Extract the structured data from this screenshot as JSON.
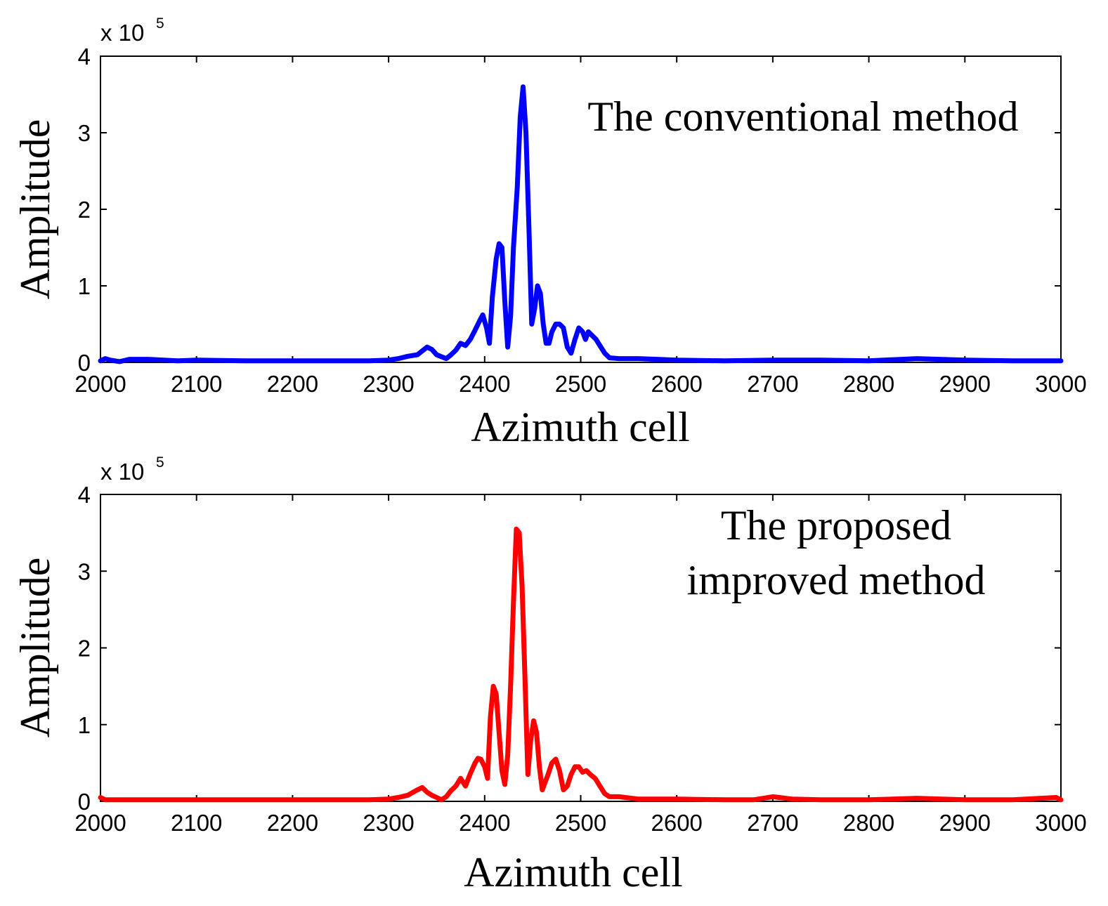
{
  "chart_data": [
    {
      "type": "line",
      "xlabel": "Azimuth cell",
      "ylabel": "Amplitude",
      "y_exponent": {
        "prefix": "x 10",
        "power": "5"
      },
      "xlim": [
        2000,
        3000
      ],
      "ylim": [
        0,
        4
      ],
      "xticks": [
        2000,
        2100,
        2200,
        2300,
        2400,
        2500,
        2600,
        2700,
        2800,
        2900,
        3000
      ],
      "yticks": [
        0,
        1,
        2,
        3,
        4
      ],
      "annotation": [
        "The conventional method"
      ],
      "legend_position": "top-right",
      "grid": false,
      "series": [
        {
          "name": "The conventional method",
          "color": "#0000ff",
          "x": [
            2000,
            2005,
            2010,
            2020,
            2030,
            2050,
            2080,
            2100,
            2150,
            2200,
            2250,
            2280,
            2300,
            2310,
            2320,
            2330,
            2340,
            2345,
            2350,
            2360,
            2365,
            2370,
            2375,
            2380,
            2385,
            2390,
            2395,
            2398,
            2402,
            2405,
            2408,
            2412,
            2415,
            2418,
            2421,
            2424,
            2427,
            2430,
            2434,
            2437,
            2440,
            2443,
            2446,
            2449,
            2452,
            2455,
            2458,
            2461,
            2464,
            2467,
            2470,
            2474,
            2478,
            2482,
            2486,
            2490,
            2494,
            2498,
            2502,
            2505,
            2508,
            2512,
            2516,
            2520,
            2525,
            2530,
            2540,
            2560,
            2600,
            2650,
            2700,
            2750,
            2800,
            2850,
            2900,
            2950,
            3000
          ],
          "values": [
            0.02,
            0.05,
            0.03,
            0.01,
            0.04,
            0.04,
            0.02,
            0.03,
            0.02,
            0.02,
            0.02,
            0.02,
            0.03,
            0.05,
            0.08,
            0.1,
            0.2,
            0.17,
            0.1,
            0.05,
            0.1,
            0.16,
            0.25,
            0.22,
            0.3,
            0.42,
            0.55,
            0.62,
            0.45,
            0.25,
            0.85,
            1.35,
            1.55,
            1.5,
            0.8,
            0.2,
            0.6,
            1.5,
            2.3,
            3.2,
            3.6,
            3.0,
            1.8,
            0.5,
            0.7,
            1.0,
            0.9,
            0.5,
            0.25,
            0.25,
            0.4,
            0.5,
            0.5,
            0.45,
            0.2,
            0.12,
            0.3,
            0.45,
            0.4,
            0.3,
            0.4,
            0.35,
            0.3,
            0.22,
            0.12,
            0.06,
            0.05,
            0.05,
            0.03,
            0.02,
            0.03,
            0.03,
            0.02,
            0.05,
            0.03,
            0.02,
            0.02
          ]
        }
      ]
    },
    {
      "type": "line",
      "xlabel": "Azimuth cell",
      "ylabel": "Amplitude",
      "y_exponent": {
        "prefix": "x 10",
        "power": "5"
      },
      "xlim": [
        2000,
        3000
      ],
      "ylim": [
        0,
        4
      ],
      "xticks": [
        2000,
        2100,
        2200,
        2300,
        2400,
        2500,
        2600,
        2700,
        2800,
        2900,
        3000
      ],
      "yticks": [
        0,
        1,
        2,
        3,
        4
      ],
      "annotation": [
        "The proposed",
        "improved method"
      ],
      "legend_position": "top-right",
      "grid": false,
      "series": [
        {
          "name": "The proposed improved method",
          "color": "#ff0000",
          "x": [
            2000,
            2005,
            2010,
            2030,
            2050,
            2080,
            2100,
            2150,
            2200,
            2250,
            2280,
            2300,
            2310,
            2320,
            2330,
            2335,
            2340,
            2345,
            2350,
            2355,
            2360,
            2365,
            2370,
            2375,
            2380,
            2385,
            2390,
            2393,
            2396,
            2400,
            2403,
            2406,
            2409,
            2412,
            2415,
            2418,
            2421,
            2424,
            2427,
            2430,
            2433,
            2436,
            2439,
            2442,
            2445,
            2448,
            2451,
            2454,
            2457,
            2460,
            2463,
            2466,
            2470,
            2474,
            2478,
            2482,
            2486,
            2490,
            2494,
            2498,
            2502,
            2506,
            2510,
            2515,
            2520,
            2525,
            2530,
            2540,
            2560,
            2600,
            2650,
            2680,
            2700,
            2720,
            2750,
            2800,
            2850,
            2900,
            2950,
            2995,
            3000
          ],
          "values": [
            0.05,
            0.02,
            0.02,
            0.02,
            0.02,
            0.02,
            0.02,
            0.02,
            0.02,
            0.02,
            0.02,
            0.03,
            0.05,
            0.08,
            0.15,
            0.18,
            0.12,
            0.08,
            0.05,
            0.02,
            0.06,
            0.14,
            0.2,
            0.3,
            0.2,
            0.36,
            0.5,
            0.56,
            0.55,
            0.45,
            0.3,
            1.1,
            1.5,
            1.4,
            0.9,
            0.4,
            0.22,
            0.6,
            1.5,
            2.6,
            3.55,
            3.5,
            2.8,
            1.6,
            0.35,
            0.8,
            1.05,
            0.9,
            0.45,
            0.15,
            0.25,
            0.35,
            0.5,
            0.55,
            0.4,
            0.15,
            0.2,
            0.35,
            0.45,
            0.45,
            0.38,
            0.4,
            0.35,
            0.3,
            0.2,
            0.1,
            0.06,
            0.06,
            0.03,
            0.03,
            0.02,
            0.02,
            0.06,
            0.03,
            0.02,
            0.02,
            0.04,
            0.02,
            0.02,
            0.05,
            0.02
          ]
        }
      ]
    }
  ]
}
